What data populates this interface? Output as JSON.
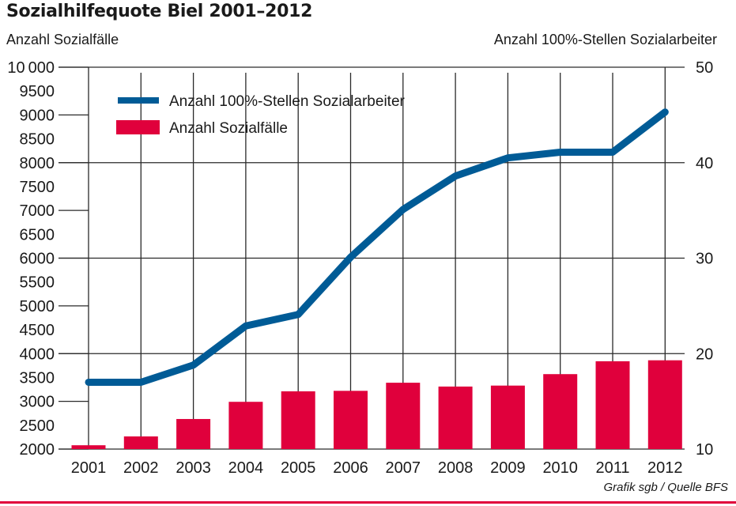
{
  "chart_data": {
    "type": "bar+line",
    "title": "Sozialhilfequote Biel 2001–2012",
    "xlabel": "",
    "ylabel_left": "Anzahl Sozialfälle",
    "ylabel_right": "Anzahl 100%-Stellen Sozialarbeiter",
    "categories": [
      "2001",
      "2002",
      "2003",
      "2004",
      "2005",
      "2006",
      "2007",
      "2008",
      "2009",
      "2010",
      "2011",
      "2012"
    ],
    "ylim_left": [
      2000,
      10000
    ],
    "ylim_right": [
      10,
      50
    ],
    "left_ticks": [
      "10000",
      "9500",
      "9000",
      "8500",
      "8000",
      "7500",
      "7000",
      "6500",
      "6000",
      "5500",
      "5000",
      "4500",
      "4000",
      "3500",
      "3000",
      "2500",
      "2000"
    ],
    "left_tick_values": [
      10000,
      9500,
      9000,
      8500,
      8000,
      7500,
      7000,
      6500,
      6000,
      5500,
      5000,
      4500,
      4000,
      3500,
      3000,
      2500,
      2000
    ],
    "right_ticks": [
      "50",
      "40",
      "30",
      "20",
      "10"
    ],
    "right_tick_values": [
      50,
      40,
      30,
      20,
      10
    ],
    "grid": true,
    "legend_position": "top-left",
    "series": [
      {
        "name": "Anzahl 100%-Stellen Sozialarbeiter",
        "type": "line",
        "axis": "right",
        "color": "#005b96",
        "values": [
          17.0,
          17.0,
          18.8,
          22.9,
          24.1,
          30.1,
          35.1,
          38.6,
          40.5,
          41.1,
          41.1,
          45.3
        ]
      },
      {
        "name": "Anzahl Sozialfälle",
        "type": "bar",
        "axis": "left",
        "color": "#e0003c",
        "values": [
          2080,
          2265,
          2630,
          2990,
          3210,
          3220,
          3390,
          3310,
          3330,
          3570,
          3840,
          3860
        ]
      }
    ],
    "source": "Grafik sgb / Quelle BFS"
  },
  "colors": {
    "accent_red": "#e0003c",
    "line_blue": "#005b96",
    "grid": "#2a2a2a"
  }
}
